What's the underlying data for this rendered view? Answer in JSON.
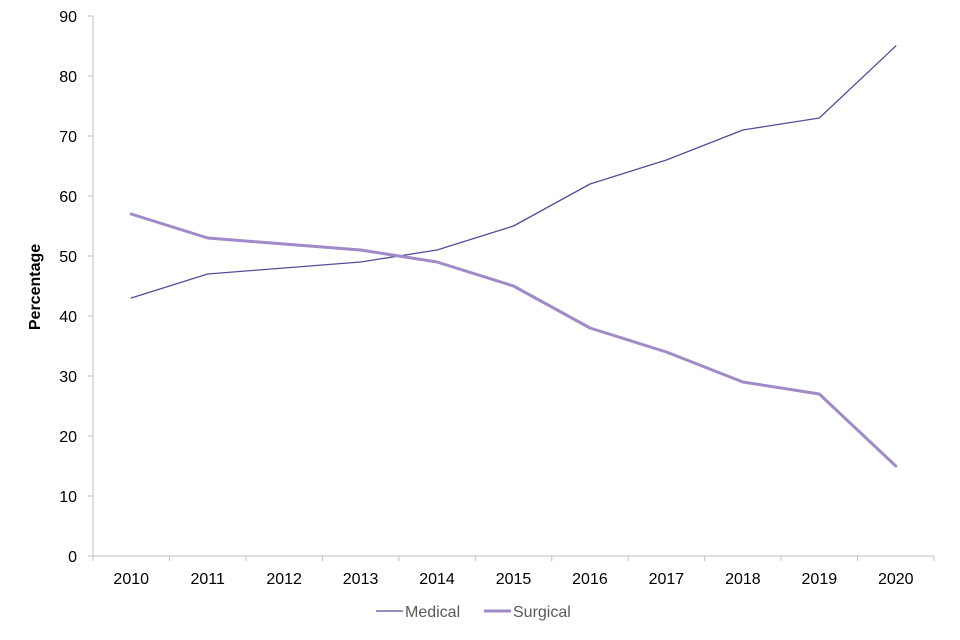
{
  "chart_data": {
    "type": "line",
    "x": [
      "2010",
      "2011",
      "2012",
      "2013",
      "2014",
      "2015",
      "2016",
      "2017",
      "2018",
      "2019",
      "2020"
    ],
    "series": [
      {
        "name": "Medical",
        "values": [
          43,
          47,
          48,
          49,
          51,
          55,
          62,
          66,
          71,
          73,
          85
        ],
        "color": "#5b4a9a",
        "line": "thin"
      },
      {
        "name": "Surgical",
        "values": [
          57,
          53,
          52,
          51,
          49,
          45,
          38,
          34,
          29,
          27,
          15
        ],
        "color": "#a08ac8",
        "line": "thick"
      }
    ],
    "title": "",
    "xlabel": "",
    "ylabel": "Percentage",
    "ylim": [
      0,
      90
    ],
    "yticks": [
      0,
      10,
      20,
      30,
      40,
      50,
      60,
      70,
      80,
      90
    ],
    "grid": false,
    "legend_position": "bottom"
  }
}
